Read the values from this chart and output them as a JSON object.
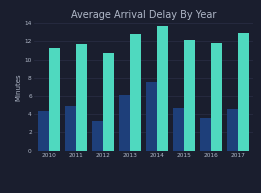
{
  "title": "Average Arrival Delay By Year",
  "years": [
    2010,
    2011,
    2012,
    2013,
    2014,
    2015,
    2016,
    2017
  ],
  "overall_avg": [
    4.3,
    4.9,
    3.2,
    6.1,
    7.5,
    4.7,
    3.6,
    4.6
  ],
  "early_set_zero": [
    11.3,
    11.7,
    10.7,
    12.8,
    13.7,
    12.1,
    11.8,
    12.9
  ],
  "bar_color_overall": "#1e3f7a",
  "bar_color_early": "#4fd9bf",
  "background_color": "#1a1e2e",
  "plot_bg_color": "#1a1e2e",
  "text_color": "#b0b8c8",
  "grid_color": "#2a2f45",
  "ylabel": "Minutes",
  "ylim": [
    0,
    14
  ],
  "yticks": [
    0,
    2,
    4,
    6,
    8,
    10,
    12,
    14
  ],
  "title_fontsize": 7.0,
  "axis_fontsize": 5.0,
  "tick_fontsize": 4.2,
  "legend_fontsize": 3.8,
  "bar_width": 0.4
}
